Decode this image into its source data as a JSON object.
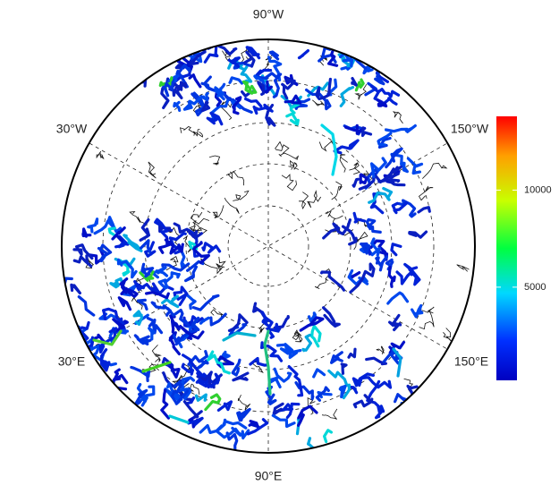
{
  "map": {
    "graticule_labels": [
      "90°W",
      "30°W",
      "150°W",
      "30°E",
      "150°E",
      "90°E"
    ],
    "colorbar": {
      "lim": [
        200,
        13800
      ],
      "ticks": [
        5000,
        10000
      ]
    }
  }
}
